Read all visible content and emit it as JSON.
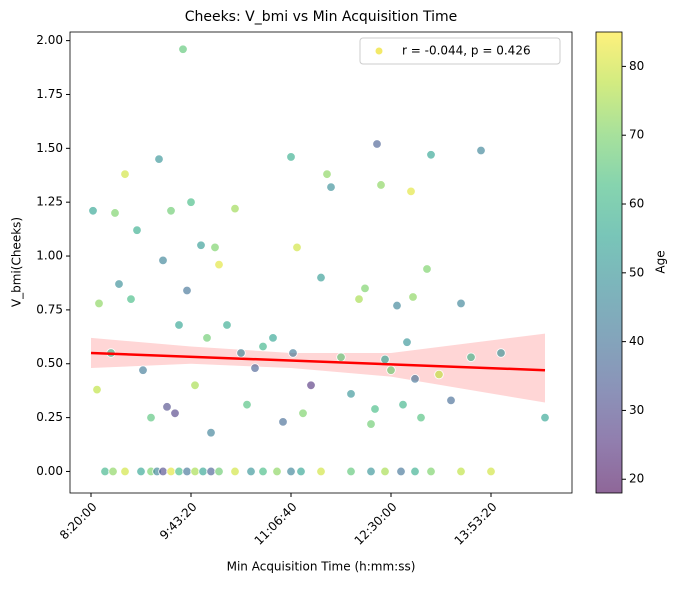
{
  "chart_data": {
    "type": "scatter",
    "title": "Cheeks: V_bmi vs Min Acquisition Time",
    "x_label": "Min Acquisition Time (h:mm:ss)",
    "y_label": "V_bmi(Cheeks)",
    "colorbar_label": "Age",
    "colormap": "viridis",
    "legend_position": "upper right",
    "legend_color": "#f0e442",
    "series": [
      {
        "name": "r = -0.044, p = 0.426",
        "x": [
          30100,
          30400,
          30300,
          31000,
          31200,
          31400,
          31700,
          32000,
          32300,
          32600,
          33000,
          33400,
          33600,
          33800,
          34000,
          34200,
          34400,
          34600,
          34800,
          35000,
          35200,
          35500,
          35800,
          36000,
          36200,
          36400,
          36800,
          37200,
          37500,
          37800,
          38200,
          38600,
          39100,
          39600,
          40000,
          40100,
          40300,
          40600,
          41000,
          41500,
          41800,
          42000,
          42500,
          43000,
          43400,
          43700,
          44000,
          44200,
          44300,
          44500,
          44700,
          45000,
          45300,
          45600,
          45800,
          46000,
          46100,
          46200,
          46500,
          46800,
          47000,
          47400,
          48000,
          48500,
          49000,
          49500,
          50500,
          52700,
          30700,
          31100,
          31700,
          32500,
          33000,
          33300,
          33600,
          34000,
          34400,
          34800,
          35200,
          35600,
          36000,
          36400,
          37200,
          38000,
          38600,
          39300,
          40000,
          40500,
          41500,
          43000,
          44000,
          44700,
          45500,
          46200,
          47000,
          48500,
          50000
        ],
        "values": [
          1.21,
          0.78,
          0.38,
          0.55,
          1.2,
          0.87,
          1.38,
          0.8,
          1.12,
          0.47,
          0.25,
          1.45,
          0.98,
          0.3,
          1.21,
          0.27,
          0.68,
          1.96,
          0.84,
          1.25,
          0.4,
          1.05,
          0.62,
          0.18,
          1.04,
          0.96,
          0.68,
          1.22,
          0.55,
          0.31,
          0.48,
          0.58,
          0.62,
          0.23,
          1.46,
          0.55,
          1.04,
          0.27,
          0.4,
          0.9,
          1.38,
          1.32,
          0.53,
          0.36,
          0.8,
          0.85,
          0.22,
          0.29,
          1.52,
          1.33,
          0.52,
          0.47,
          0.77,
          0.31,
          0.6,
          1.3,
          0.81,
          0.43,
          0.25,
          0.94,
          1.47,
          0.45,
          0.33,
          0.78,
          0.53,
          1.49,
          0.55,
          0.25,
          0,
          0,
          0,
          0,
          0,
          0,
          0,
          0,
          0,
          0,
          0,
          0,
          0,
          0,
          0,
          0,
          0,
          0,
          0,
          0,
          0,
          0,
          0,
          0,
          0,
          0,
          0,
          0,
          0
        ],
        "age": [
          55,
          72,
          78,
          60,
          70,
          48,
          80,
          62,
          58,
          42,
          65,
          50,
          45,
          30,
          68,
          28,
          55,
          66,
          40,
          62,
          75,
          52,
          68,
          44,
          70,
          82,
          57,
          74,
          46,
          64,
          35,
          60,
          55,
          38,
          58,
          42,
          80,
          70,
          25,
          52,
          72,
          48,
          66,
          50,
          75,
          70,
          68,
          62,
          35,
          72,
          55,
          68,
          45,
          60,
          50,
          82,
          72,
          40,
          64,
          70,
          55,
          78,
          38,
          45,
          60,
          45,
          50,
          55,
          60,
          72,
          80,
          55,
          70,
          45,
          30,
          82,
          62,
          40,
          75,
          55,
          35,
          68,
          80,
          50,
          62,
          72,
          45,
          55,
          80,
          66,
          50,
          75,
          40,
          58,
          70,
          78,
          80
        ]
      }
    ],
    "regression": {
      "x": [
        30000,
        52700
      ],
      "values": [
        0.55,
        0.47
      ]
    },
    "ci": {
      "x": [
        30000,
        35000,
        40000,
        45000,
        52700
      ],
      "lower": [
        0.48,
        0.5,
        0.48,
        0.44,
        0.32
      ],
      "upper": [
        0.62,
        0.58,
        0.55,
        0.55,
        0.64
      ],
      "color": "#ff9999"
    },
    "regression_color": "#ff0000",
    "xlim": [
      28950,
      54050
    ],
    "xticks": [
      {
        "value": 30000,
        "label": "8:20:00"
      },
      {
        "value": 35000,
        "label": "9:43:20"
      },
      {
        "value": 40000,
        "label": "11:06:40"
      },
      {
        "value": 45000,
        "label": "12:30:00"
      },
      {
        "value": 50000,
        "label": "13:53:20"
      }
    ],
    "ylim": [
      -0.1,
      2.04
    ],
    "yticks": [
      {
        "value": 0,
        "label": "0.00"
      },
      {
        "value": 0.25,
        "label": "0.25"
      },
      {
        "value": 0.5,
        "label": "0.50"
      },
      {
        "value": 0.75,
        "label": "0.75"
      },
      {
        "value": 1,
        "label": "1.00"
      },
      {
        "value": 1.25,
        "label": "1.25"
      },
      {
        "value": 1.5,
        "label": "1.50"
      },
      {
        "value": 1.75,
        "label": "1.75"
      },
      {
        "value": 2,
        "label": "2.00"
      }
    ],
    "clim": [
      18,
      85
    ],
    "cticks": [
      20,
      30,
      40,
      50,
      60,
      70,
      80
    ]
  }
}
